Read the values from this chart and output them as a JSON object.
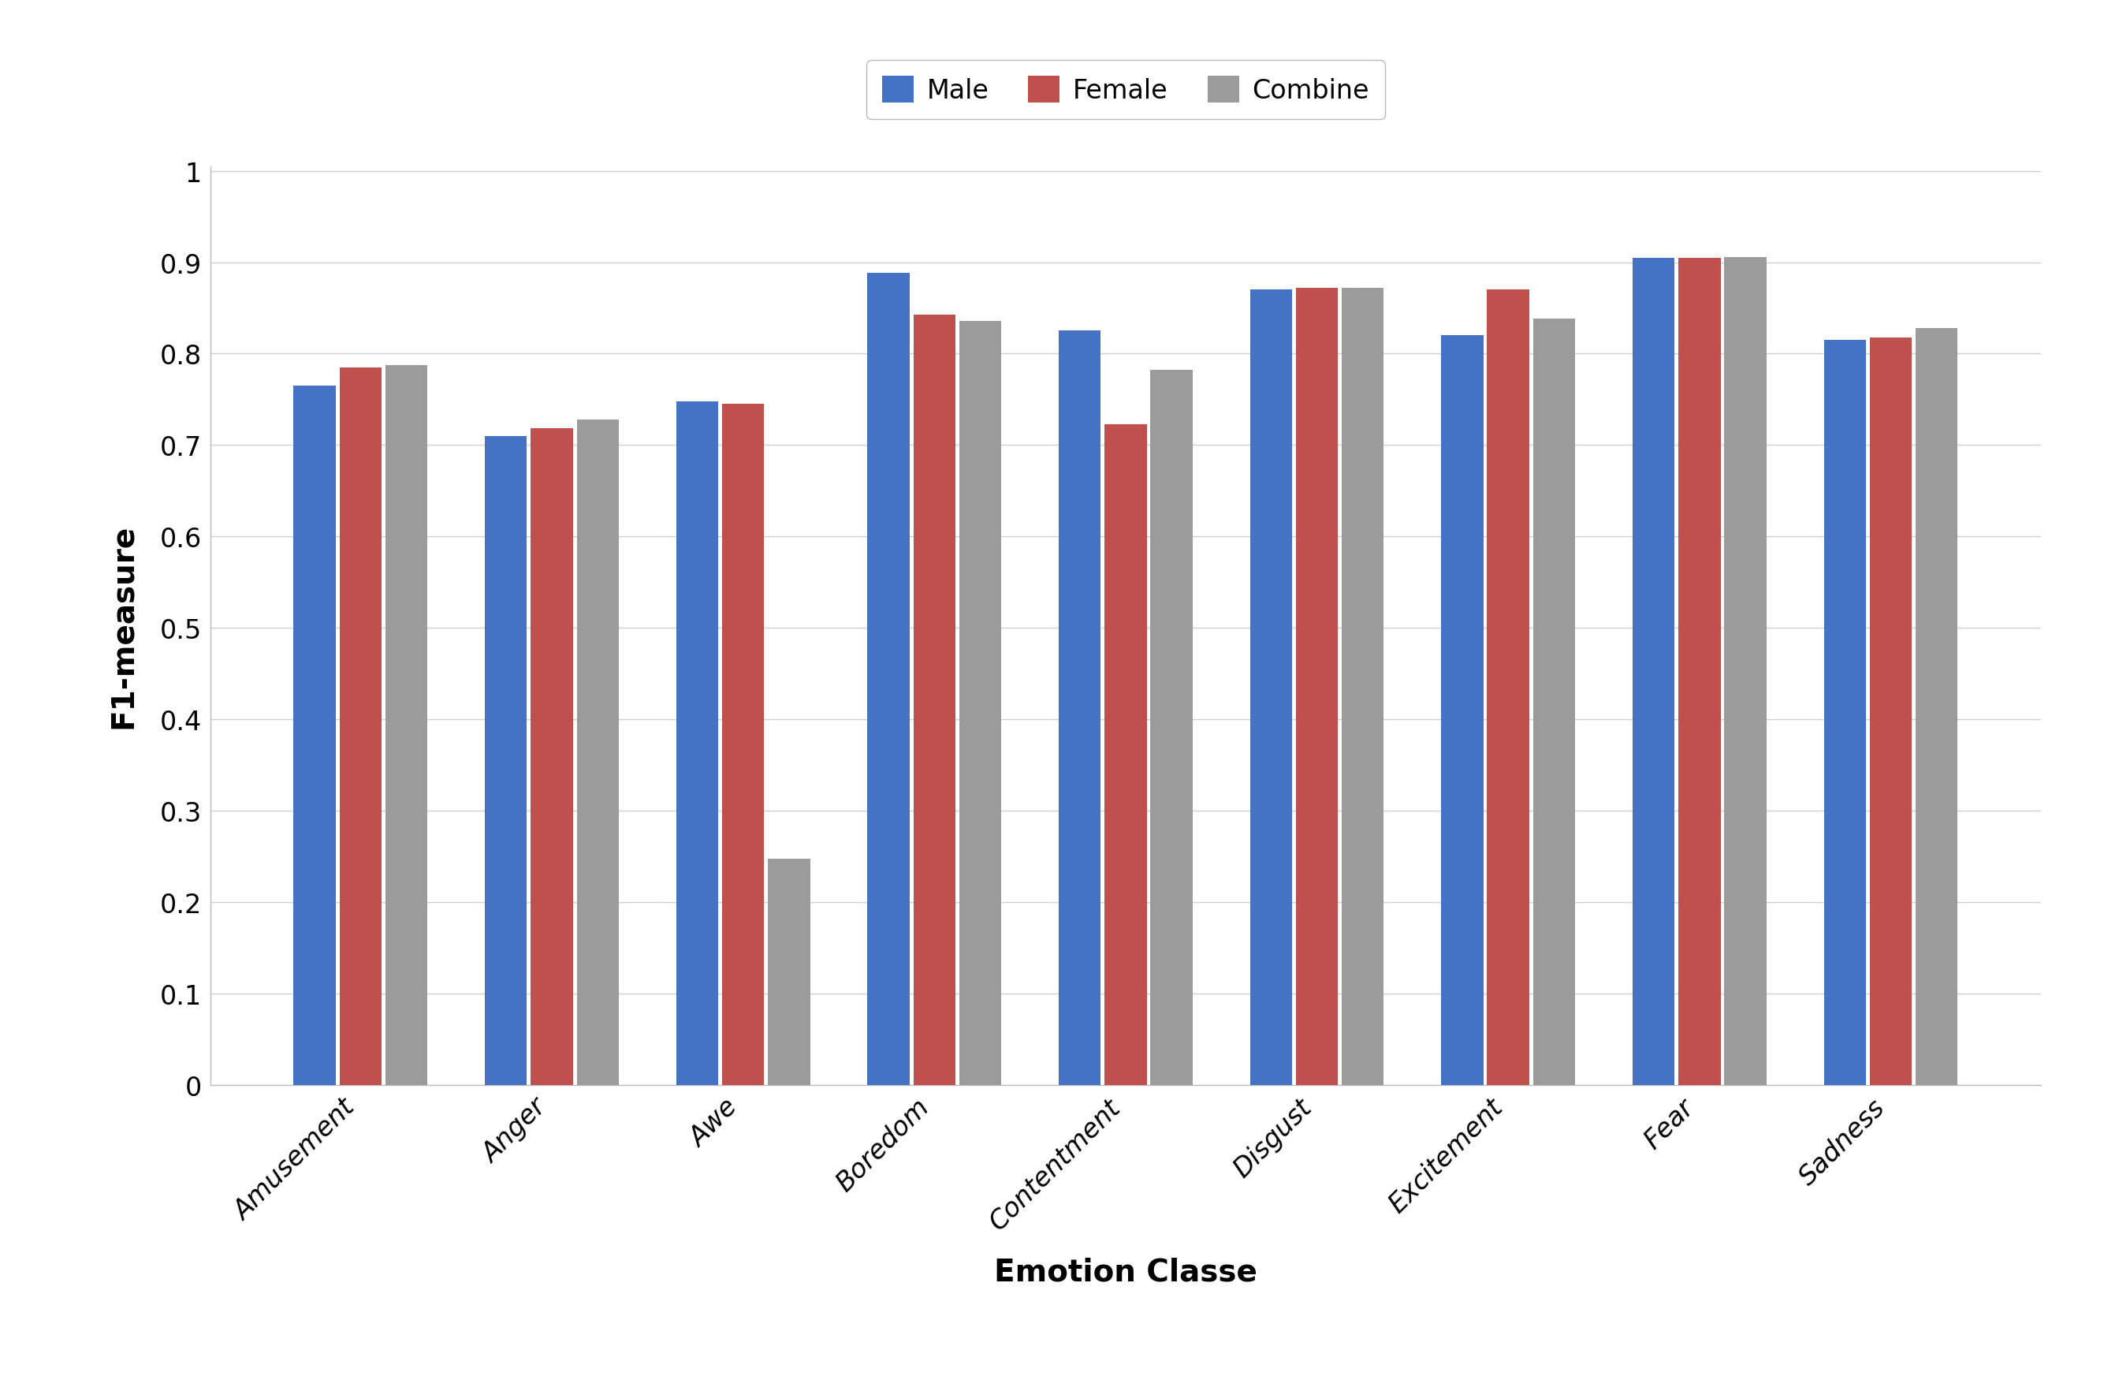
{
  "categories": [
    "Amusement",
    "Anger",
    "Awe",
    "Boredom",
    "Contentment",
    "Disgust",
    "Excitement",
    "Fear",
    "Sadness"
  ],
  "male": [
    0.765,
    0.71,
    0.748,
    0.888,
    0.825,
    0.87,
    0.82,
    0.905,
    0.815
  ],
  "female": [
    0.785,
    0.718,
    0.745,
    0.843,
    0.723,
    0.872,
    0.87,
    0.905,
    0.818
  ],
  "combine": [
    0.787,
    0.728,
    0.247,
    0.836,
    0.782,
    0.872,
    0.838,
    0.906,
    0.828
  ],
  "bar_colors": {
    "male": "#4472C4",
    "female": "#C0504D",
    "combine": "#9B9B9B"
  },
  "xlabel": "Emotion Classe",
  "ylabel": "F1-measure",
  "ylim": [
    0,
    1.0
  ],
  "yticks": [
    0,
    0.1,
    0.2,
    0.3,
    0.4,
    0.5,
    0.6,
    0.7,
    0.8,
    0.9,
    1
  ],
  "ytick_labels": [
    "0",
    "0.1",
    "0.2",
    "0.3",
    "0.4",
    "0.5",
    "0.6",
    "0.7",
    "0.8",
    "0.9",
    "1"
  ],
  "legend_labels": [
    "Male",
    "Female",
    "Combine"
  ],
  "xlabel_fontsize": 28,
  "ylabel_fontsize": 28,
  "tick_fontsize": 24,
  "legend_fontsize": 24,
  "background_color": "#ffffff",
  "grid_color": "#D0D0D0",
  "bar_width": 0.22,
  "bar_gap": 0.02
}
